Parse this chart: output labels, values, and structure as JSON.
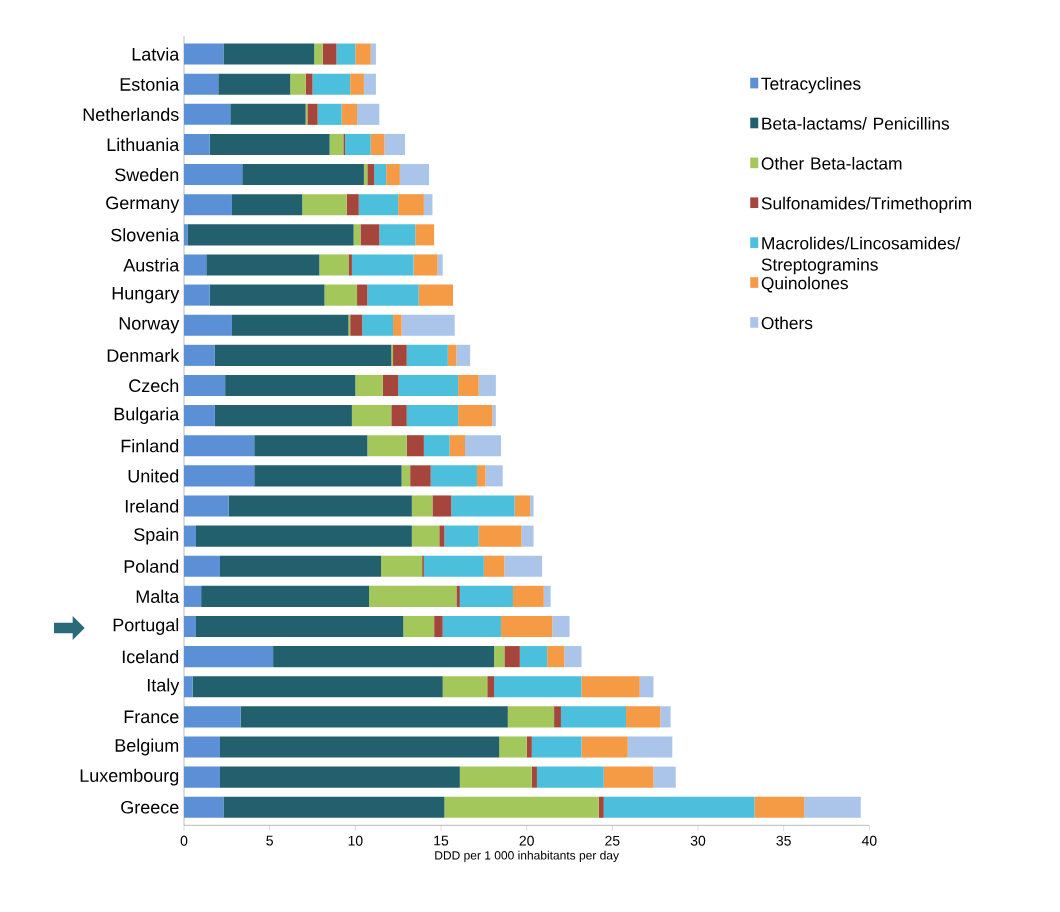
{
  "chart_data": {
    "type": "bar",
    "orientation": "horizontal",
    "stacked": true,
    "categories": [
      "Latvia",
      "Estonia",
      "Netherlands",
      "Lithuania",
      "Sweden",
      "Germany",
      "Slovenia",
      "Austria",
      "Hungary",
      "Norway",
      "Denmark",
      "Czech",
      "Bulgaria",
      "Finland",
      "United",
      "Ireland",
      "Spain",
      "Poland",
      "Malta",
      "Portugal",
      "Iceland",
      "Italy",
      "France",
      "Belgium",
      "Luxembourg",
      "Greece"
    ],
    "series": [
      {
        "name": "Tetracyclines",
        "color": "#5b8fd6",
        "values": [
          2.3,
          2.0,
          2.7,
          1.5,
          3.4,
          2.8,
          0.2,
          1.3,
          1.5,
          2.8,
          1.8,
          2.4,
          1.8,
          4.1,
          4.1,
          2.6,
          0.7,
          2.1,
          1.0,
          0.7,
          5.2,
          0.5,
          3.3,
          2.1,
          2.1,
          2.3
        ]
      },
      {
        "name": "Beta-lactams/ Penicillins",
        "color": "#23606e",
        "values": [
          5.3,
          4.2,
          4.4,
          7.0,
          7.1,
          4.1,
          9.7,
          6.6,
          6.7,
          6.8,
          10.3,
          7.6,
          8.0,
          6.6,
          8.6,
          10.7,
          12.6,
          9.4,
          9.8,
          12.1,
          12.9,
          14.6,
          15.6,
          16.3,
          14.0,
          12.9
        ]
      },
      {
        "name": "Other Beta-lactam",
        "color": "#a3c75a",
        "values": [
          0.5,
          0.9,
          0.1,
          0.8,
          0.2,
          2.6,
          0.4,
          1.7,
          1.9,
          0.1,
          0.1,
          1.6,
          2.3,
          2.3,
          0.5,
          1.2,
          1.6,
          2.4,
          5.1,
          1.8,
          0.6,
          2.6,
          2.7,
          1.6,
          4.2,
          9.0
        ]
      },
      {
        "name": "Sulfonamides/Trimethoprim",
        "color": "#a5453b",
        "values": [
          0.8,
          0.4,
          0.6,
          0.1,
          0.4,
          0.7,
          1.1,
          0.2,
          0.6,
          0.7,
          0.8,
          0.9,
          0.9,
          1.0,
          1.2,
          1.1,
          0.3,
          0.1,
          0.2,
          0.5,
          0.9,
          0.4,
          0.4,
          0.3,
          0.3,
          0.3
        ]
      },
      {
        "name": "Macrolides/Lincosamides/ Streptogramins",
        "color": "#4bbfdc",
        "values": [
          1.1,
          2.2,
          1.4,
          1.5,
          0.7,
          2.3,
          2.1,
          3.6,
          3.0,
          1.8,
          2.4,
          3.5,
          3.0,
          1.5,
          2.7,
          3.7,
          2.0,
          3.5,
          3.1,
          3.4,
          1.6,
          5.1,
          3.8,
          2.9,
          3.9,
          8.8
        ]
      },
      {
        "name": "Quinolones",
        "color": "#f59a45",
        "values": [
          0.9,
          0.8,
          0.9,
          0.8,
          0.8,
          1.5,
          1.1,
          1.4,
          2.0,
          0.5,
          0.5,
          1.2,
          2.0,
          0.9,
          0.5,
          0.9,
          2.5,
          1.2,
          1.8,
          3.0,
          1.0,
          3.4,
          2.0,
          2.7,
          2.9,
          2.9
        ]
      },
      {
        "name": "Others",
        "color": "#aac4ea",
        "values": [
          0.3,
          0.7,
          1.3,
          1.2,
          1.7,
          0.5,
          0.0,
          0.3,
          0.0,
          3.1,
          0.8,
          1.0,
          0.2,
          2.1,
          1.0,
          0.2,
          0.7,
          2.2,
          0.4,
          1.0,
          1.0,
          0.8,
          0.6,
          2.6,
          1.3,
          3.3
        ]
      }
    ],
    "xlim": [
      0,
      40
    ],
    "xticks": [
      0,
      5,
      10,
      15,
      20,
      25,
      30,
      35,
      40
    ],
    "xlabel": "DDD per 1 000 inhabitants per day",
    "legend": "top right"
  }
}
